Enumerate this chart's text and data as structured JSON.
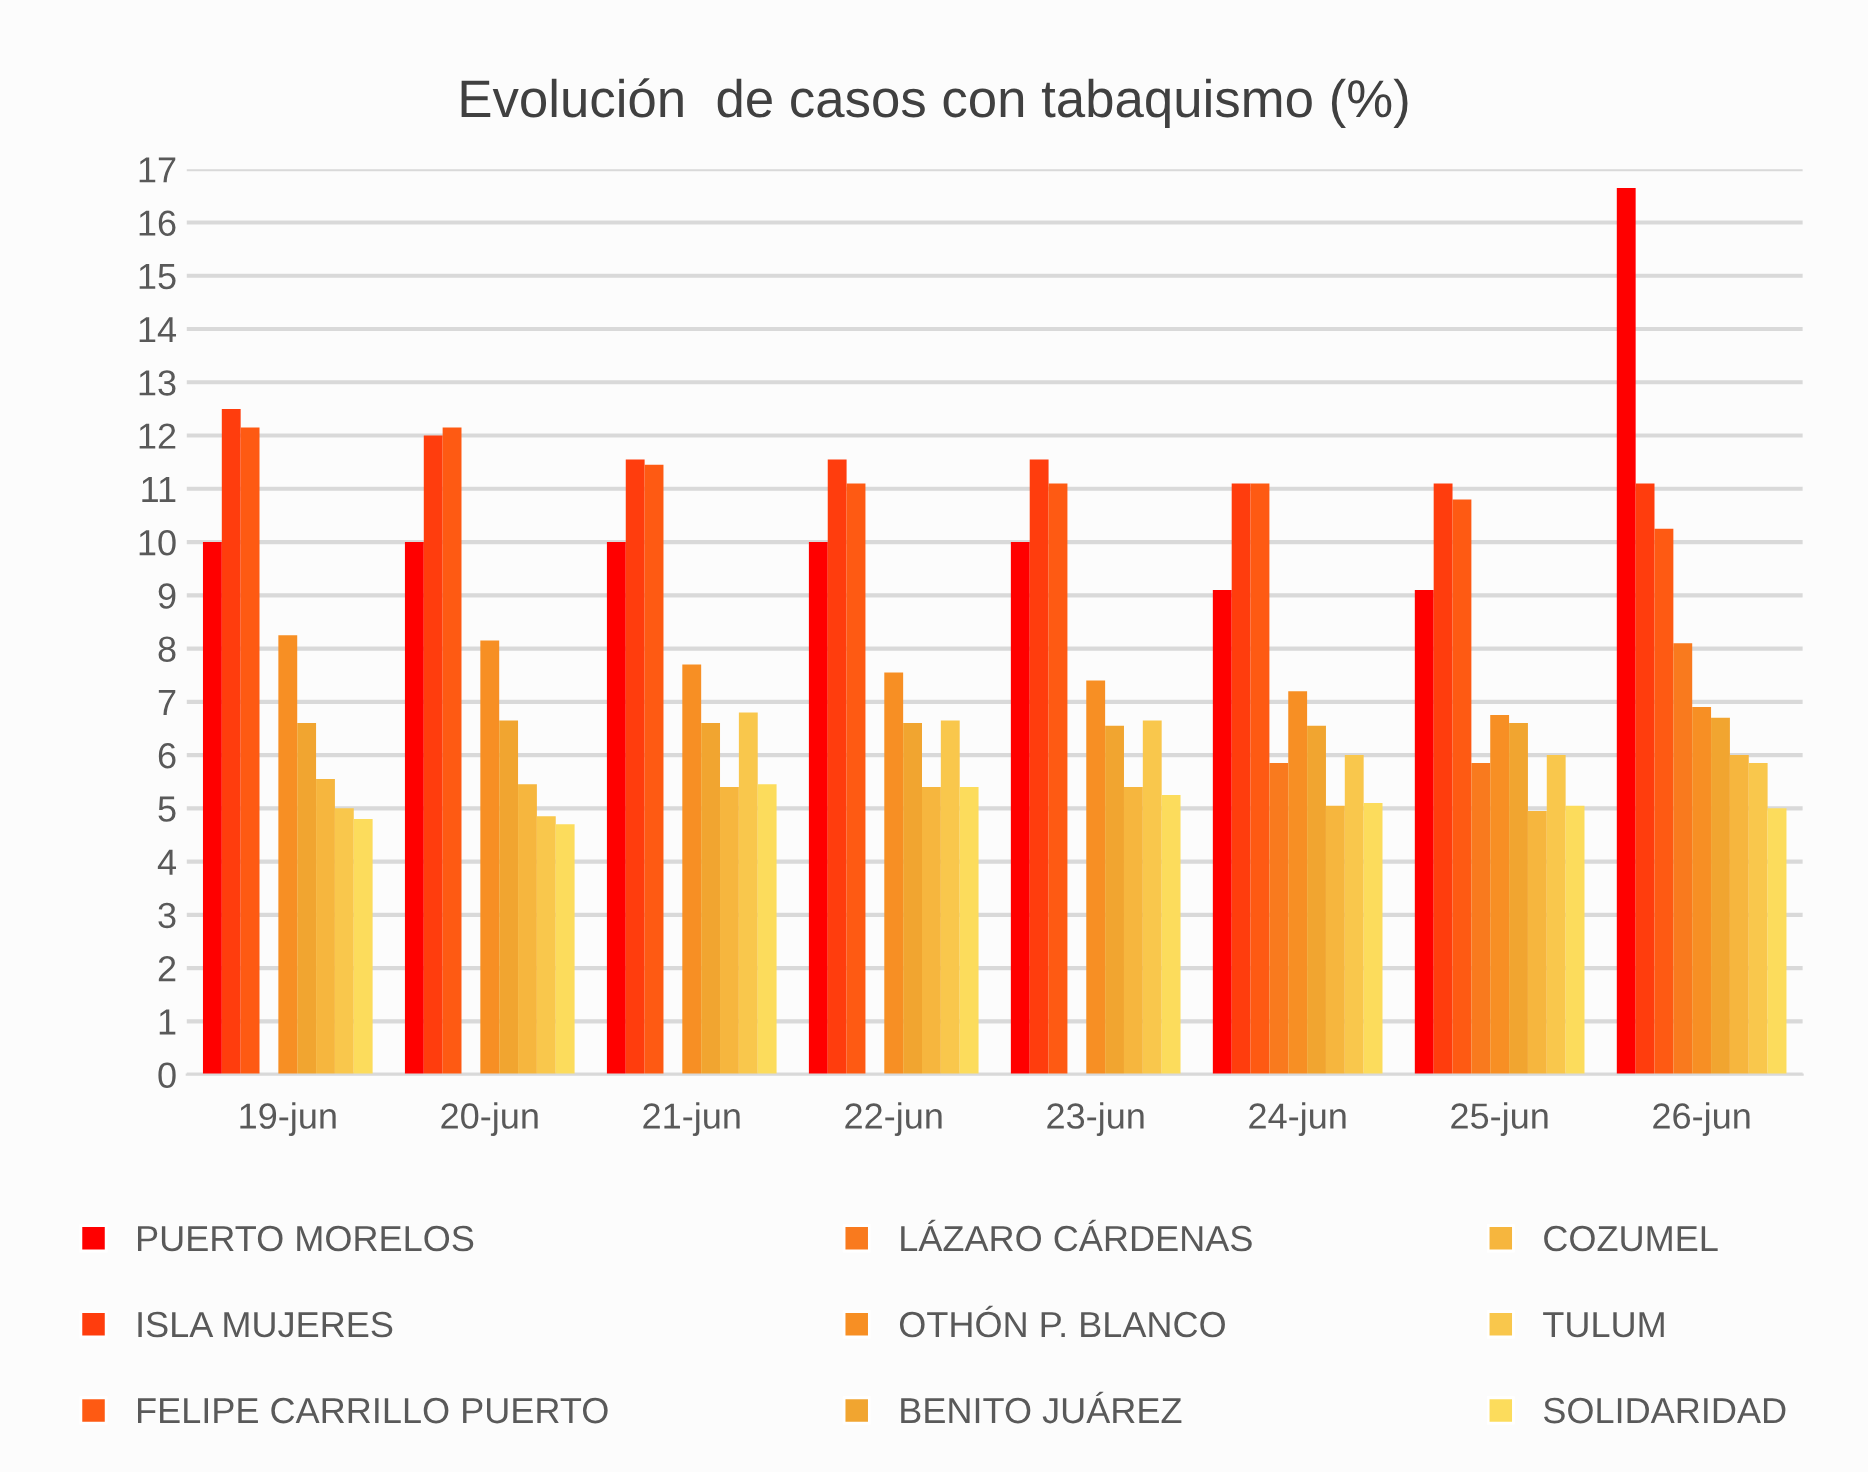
{
  "chart_data": {
    "type": "bar",
    "title": "Evolución  de casos con tabaquismo (%)",
    "categories": [
      "19-jun",
      "20-jun",
      "21-jun",
      "22-jun",
      "23-jun",
      "24-jun",
      "25-jun",
      "26-jun"
    ],
    "series": [
      {
        "name": "PUERTO MORELOS",
        "color": "#ff0000",
        "values": [
          10,
          10,
          10,
          10,
          10,
          9.1,
          9.1,
          16.65
        ]
      },
      {
        "name": "ISLA MUJERES",
        "color": "#ff3d0d",
        "values": [
          12.5,
          12.0,
          11.55,
          11.55,
          11.55,
          11.1,
          11.1,
          11.1
        ]
      },
      {
        "name": "FELIPE CARRILLO PUERTO",
        "color": "#fe5a13",
        "values": [
          12.15,
          12.15,
          11.45,
          11.1,
          11.1,
          11.1,
          10.8,
          10.25
        ]
      },
      {
        "name": "LÁZARO CÁRDENAS",
        "color": "#f97a1e",
        "values": [
          null,
          null,
          null,
          null,
          null,
          5.85,
          5.85,
          8.1
        ]
      },
      {
        "name": "OTHÓN P. BLANCO",
        "color": "#f78f24",
        "values": [
          8.25,
          8.15,
          7.7,
          7.55,
          7.4,
          7.2,
          6.75,
          6.9
        ]
      },
      {
        "name": "BENITO JUÁREZ",
        "color": "#f1a530",
        "values": [
          6.6,
          6.65,
          6.6,
          6.6,
          6.55,
          6.55,
          6.6,
          6.7
        ]
      },
      {
        "name": "COZUMEL",
        "color": "#f6b63e",
        "values": [
          5.55,
          5.45,
          5.4,
          5.4,
          5.4,
          5.05,
          4.95,
          6.0
        ]
      },
      {
        "name": "TULUM",
        "color": "#f9c74c",
        "values": [
          5.0,
          4.85,
          6.8,
          6.65,
          6.65,
          6.0,
          6.0,
          5.85
        ]
      },
      {
        "name": "SOLIDARIDAD",
        "color": "#fcdc5c",
        "values": [
          4.8,
          4.7,
          5.45,
          5.4,
          5.25,
          5.1,
          5.05,
          5.0
        ]
      }
    ],
    "ylim": [
      0,
      17
    ],
    "yticks": [
      0,
      1,
      2,
      3,
      4,
      5,
      6,
      7,
      8,
      9,
      10,
      11,
      12,
      13,
      14,
      15,
      16,
      17
    ],
    "grid": "y",
    "legend": "bottom"
  }
}
